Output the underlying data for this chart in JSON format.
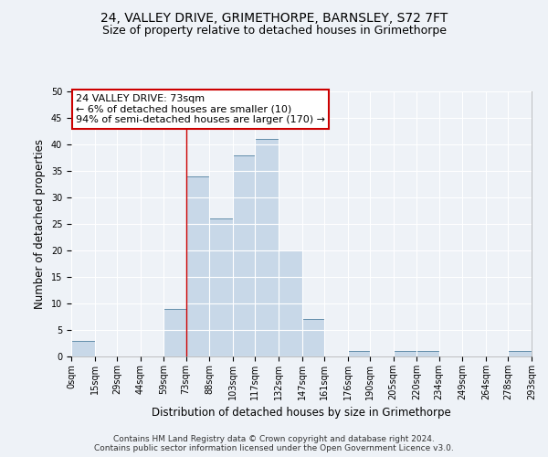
{
  "title1": "24, VALLEY DRIVE, GRIMETHORPE, BARNSLEY, S72 7FT",
  "title2": "Size of property relative to detached houses in Grimethorpe",
  "xlabel": "Distribution of detached houses by size in Grimethorpe",
  "ylabel": "Number of detached properties",
  "footnote": "Contains HM Land Registry data © Crown copyright and database right 2024.\nContains public sector information licensed under the Open Government Licence v3.0.",
  "bin_edges": [
    0,
    15,
    29,
    44,
    59,
    73,
    88,
    103,
    117,
    132,
    147,
    161,
    176,
    190,
    205,
    220,
    234,
    249,
    264,
    278,
    293
  ],
  "bar_heights": [
    3,
    0,
    0,
    0,
    9,
    34,
    26,
    38,
    41,
    20,
    7,
    0,
    1,
    0,
    1,
    1,
    0,
    0,
    0,
    1
  ],
  "bar_color": "#c8d8e8",
  "bar_edge_color": "#5080a0",
  "property_line_x": 73,
  "property_line_color": "#cc0000",
  "annotation_text": "24 VALLEY DRIVE: 73sqm\n← 6% of detached houses are smaller (10)\n94% of semi-detached houses are larger (170) →",
  "annotation_box_color": "#ffffff",
  "annotation_box_edge_color": "#cc0000",
  "ylim": [
    0,
    50
  ],
  "yticks": [
    0,
    5,
    10,
    15,
    20,
    25,
    30,
    35,
    40,
    45,
    50
  ],
  "background_color": "#eef2f7",
  "grid_color": "#ffffff",
  "title1_fontsize": 10,
  "title2_fontsize": 9,
  "xlabel_fontsize": 8.5,
  "ylabel_fontsize": 8.5,
  "tick_label_fontsize": 7,
  "annotation_fontsize": 8,
  "footnote_fontsize": 6.5
}
